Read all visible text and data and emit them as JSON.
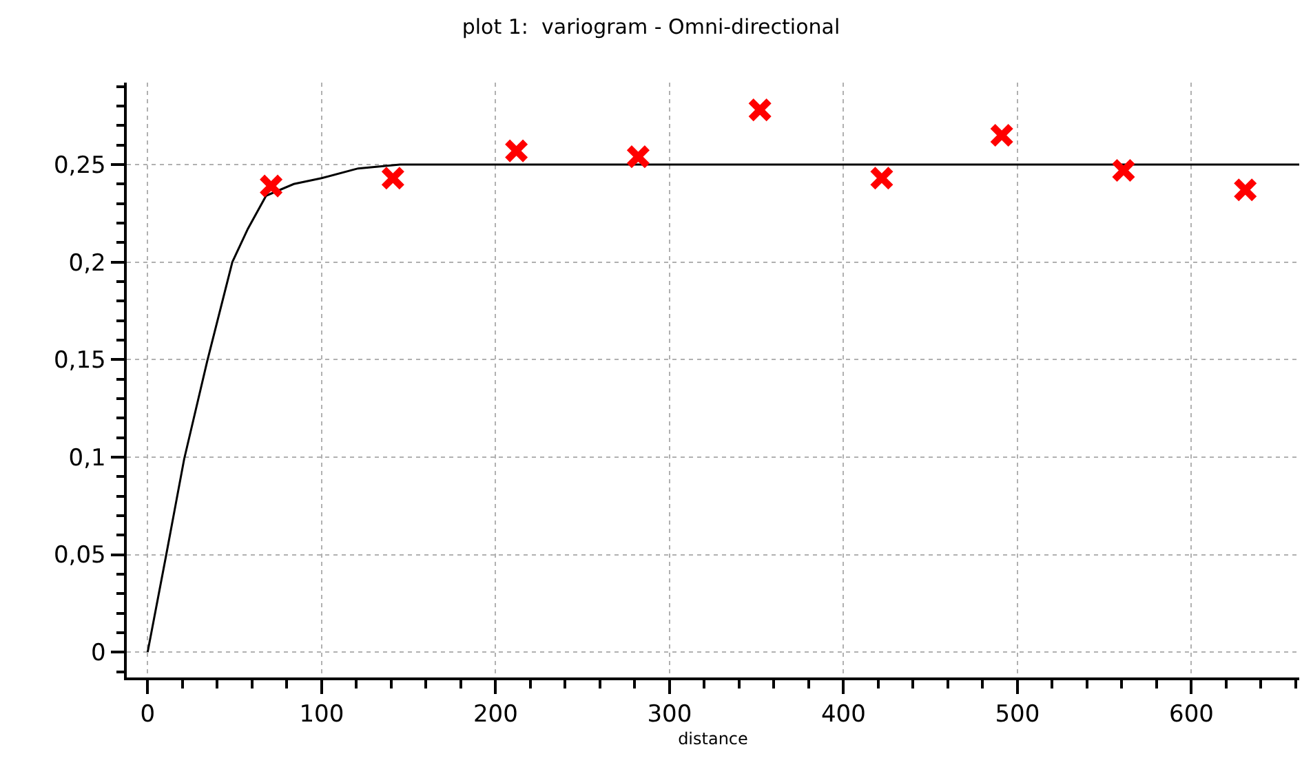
{
  "chart_data": {
    "type": "scatter",
    "title": "plot 1:  variogram - Omni-directional",
    "xlabel": "distance",
    "xlim": [
      -12,
      662
    ],
    "ylim": [
      -0.013,
      0.292
    ],
    "xticks": [
      0,
      100,
      200,
      300,
      400,
      500,
      600
    ],
    "yticks": [
      {
        "value": 0,
        "label": "0"
      },
      {
        "value": 0.05,
        "label": "0,05"
      },
      {
        "value": 0.1,
        "label": "0,1"
      },
      {
        "value": 0.15,
        "label": "0,15"
      },
      {
        "value": 0.2,
        "label": "0,2"
      },
      {
        "value": 0.25,
        "label": "0,25"
      }
    ],
    "grid": true,
    "series": [
      {
        "type": "line",
        "color": "#000000",
        "marker": "none",
        "line_style": "solid",
        "x": [
          0,
          10.5,
          21,
          34.2,
          48.7,
          57.6,
          68.1,
          84,
          100,
          121,
          145,
          662
        ],
        "values": [
          0,
          0.049,
          0.099,
          0.149,
          0.2,
          0.217,
          0.234,
          0.24,
          0.243,
          0.248,
          0.25,
          0.25
        ]
      },
      {
        "color": "#ff0000",
        "marker": "cross",
        "x": [
          71,
          141,
          212,
          282,
          352,
          422,
          491,
          561,
          631
        ],
        "values": [
          0.239,
          0.243,
          0.257,
          0.254,
          0.278,
          0.243,
          0.265,
          0.247,
          0.237
        ]
      }
    ]
  }
}
